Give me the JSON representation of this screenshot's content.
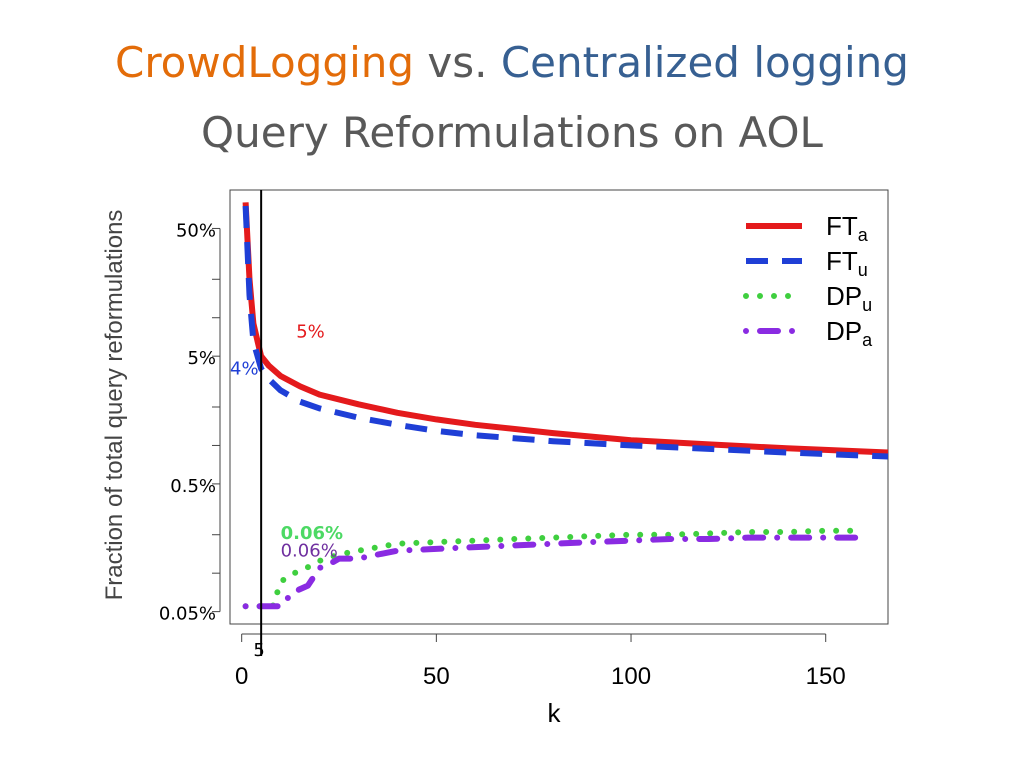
{
  "slide": {
    "title_part1": "CrowdLogging",
    "title_part2": " vs. ",
    "title_part3": "Centralized logging",
    "subtitle": "Query Reformulations on AOL"
  },
  "chart_data": {
    "type": "line",
    "xlabel": "k",
    "ylabel": "Fraction of total query reformulations",
    "y_scale": "log",
    "x_ticks": [
      0,
      50,
      100,
      150
    ],
    "xlim": [
      -3,
      166
    ],
    "y_tick_labels": [
      {
        "label": "50%",
        "value": 0.5
      },
      {
        "label": "5%",
        "value": 0.05
      },
      {
        "label": "0.5%",
        "value": 0.005
      },
      {
        "label": "0.05%",
        "value": 0.0005
      }
    ],
    "ylim": [
      0.0004,
      1.0
    ],
    "legend_position": "top-right",
    "legend": [
      {
        "base": "FT",
        "sub": "a",
        "color": "#e41a1c",
        "style": "solid"
      },
      {
        "base": "FT",
        "sub": "u",
        "color": "#1f3fd6",
        "style": "dashed"
      },
      {
        "base": "DP",
        "sub": "u",
        "color": "#3fcf3f",
        "style": "dotted"
      },
      {
        "base": "DP",
        "sub": "a",
        "color": "#8a2be2",
        "style": "dotdash"
      }
    ],
    "series": [
      {
        "key": "FTa",
        "color": "#e41a1c",
        "style": "solid",
        "x": [
          1,
          2,
          3,
          5,
          7,
          10,
          15,
          20,
          30,
          40,
          50,
          60,
          80,
          100,
          120,
          140,
          166
        ],
        "y": [
          0.8,
          0.2,
          0.09,
          0.05,
          0.042,
          0.035,
          0.029,
          0.025,
          0.021,
          0.018,
          0.016,
          0.0145,
          0.0125,
          0.011,
          0.0102,
          0.0095,
          0.0088
        ]
      },
      {
        "key": "FTu",
        "color": "#1f3fd6",
        "style": "dashed",
        "x": [
          1,
          2,
          3,
          5,
          7,
          10,
          15,
          20,
          30,
          40,
          50,
          60,
          80,
          100,
          120,
          140,
          166
        ],
        "y": [
          0.75,
          0.15,
          0.065,
          0.04,
          0.033,
          0.027,
          0.022,
          0.0195,
          0.0165,
          0.0145,
          0.013,
          0.012,
          0.0108,
          0.01,
          0.0094,
          0.0088,
          0.0082
        ]
      },
      {
        "key": "DPu",
        "color": "#3fcf3f",
        "style": "dotted",
        "x": [
          1,
          5,
          8,
          10,
          12,
          15,
          18,
          20,
          25,
          30,
          35,
          40,
          50,
          60,
          70,
          80,
          90,
          100,
          110,
          120,
          130,
          140,
          150,
          158
        ],
        "y": [
          0.00055,
          0.00055,
          0.00055,
          0.00085,
          0.00095,
          0.00105,
          0.00115,
          0.00125,
          0.0014,
          0.0015,
          0.0016,
          0.0017,
          0.00175,
          0.0018,
          0.00185,
          0.0019,
          0.00195,
          0.002,
          0.002,
          0.00205,
          0.0021,
          0.0021,
          0.00215,
          0.00215
        ]
      },
      {
        "key": "DPa",
        "color": "#8a2be2",
        "style": "dotdash",
        "x": [
          1,
          3,
          5,
          8,
          10,
          13,
          15,
          17,
          20,
          23,
          25,
          30,
          35,
          40,
          50,
          60,
          70,
          80,
          90,
          100,
          110,
          120,
          130,
          140,
          150,
          158
        ],
        "y": [
          0.00055,
          0.00055,
          0.00055,
          0.00055,
          0.00055,
          0.0007,
          0.00075,
          0.0008,
          0.0011,
          0.0012,
          0.0013,
          0.0013,
          0.0014,
          0.0015,
          0.00155,
          0.0016,
          0.00165,
          0.0017,
          0.00175,
          0.0018,
          0.00185,
          0.00185,
          0.0019,
          0.0019,
          0.0019,
          0.0019
        ]
      }
    ],
    "vline": {
      "x": 5,
      "label": "5"
    },
    "annotations": [
      {
        "text": "5%",
        "color": "#e41a1c",
        "bold": false,
        "at_x": 14,
        "at_y": 0.07
      },
      {
        "text": "4%",
        "color": "#1f3fd6",
        "bold": false,
        "at_x": -3,
        "at_y": 0.036
      },
      {
        "text": "0.06%",
        "color": "#4cd964",
        "bold": true,
        "at_x": 10,
        "at_y": 0.00185
      },
      {
        "text": "0.06%",
        "color": "#7030a0",
        "bold": false,
        "at_x": 10,
        "at_y": 0.00135
      }
    ]
  }
}
